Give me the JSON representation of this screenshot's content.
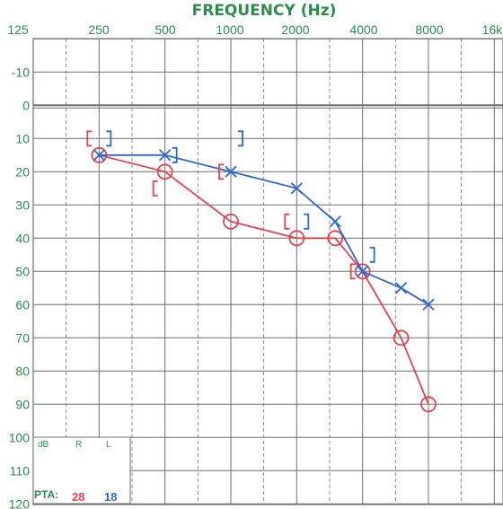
{
  "colors": {
    "grid": "#6f6f6f",
    "label": "#2e8b4e",
    "right": "#e0454f",
    "left": "#3366cc"
  },
  "chart_data": {
    "type": "line",
    "title": "FREQUENCY (Hz)",
    "x_ticks": [
      "125",
      "250",
      "500",
      "1000",
      "2000",
      "4000",
      "8000",
      "16k"
    ],
    "x_scale": "log2",
    "y_ticks": [
      "-10",
      "0",
      "10",
      "20",
      "30",
      "40",
      "50",
      "60",
      "70",
      "80",
      "90",
      "100",
      "110",
      "120"
    ],
    "ylim": [
      -20,
      120
    ],
    "y_inverted": true,
    "grid": true,
    "series": [
      {
        "name": "R",
        "color": "#e0454f",
        "symbol": "circle",
        "x": [
          250,
          500,
          1000,
          2000,
          3000,
          4000,
          6000,
          8000
        ],
        "y": [
          15,
          20,
          35,
          40,
          40,
          50,
          70,
          90
        ]
      },
      {
        "name": "L",
        "color": "#3366cc",
        "symbol": "x",
        "x": [
          250,
          500,
          1000,
          2000,
          3000,
          4000,
          6000,
          8000
        ],
        "y": [
          15,
          15,
          20,
          25,
          35,
          50,
          55,
          60
        ]
      }
    ],
    "bone_conduction": {
      "right": {
        "x": [
          250,
          500,
          1000,
          2000,
          4000
        ],
        "y": [
          10,
          25,
          20,
          35,
          50
        ]
      },
      "left": {
        "x": [
          250,
          500,
          1000,
          2000,
          4000
        ],
        "y": [
          10,
          15,
          10,
          35,
          45
        ]
      }
    },
    "legend": {
      "header": [
        "dB",
        "R",
        "L"
      ],
      "pta_label": "PTA:",
      "pta_right": "28",
      "pta_left": "18"
    }
  }
}
